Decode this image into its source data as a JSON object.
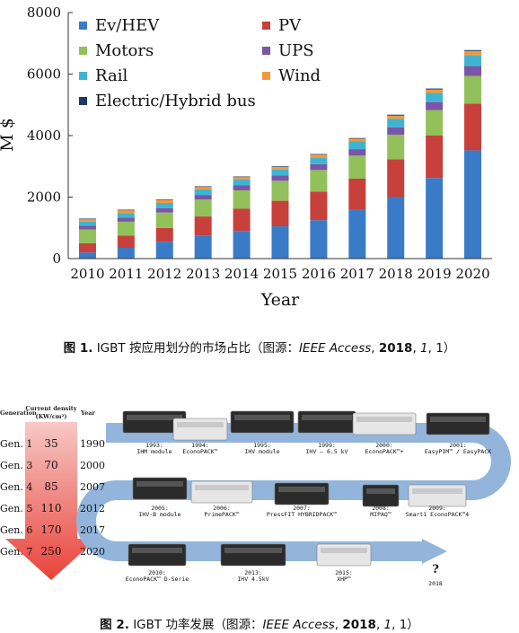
{
  "chart_data": {
    "type": "bar",
    "stacked": true,
    "categories": [
      "2010",
      "2011",
      "2012",
      "2013",
      "2014",
      "2015",
      "2016",
      "2017",
      "2018",
      "2019",
      "2020"
    ],
    "series": [
      {
        "name": "Ev/HEV",
        "color": "#3a7bc8",
        "values": [
          200,
          350,
          550,
          750,
          900,
          1050,
          1250,
          1580,
          2000,
          2620,
          3520
        ]
      },
      {
        "name": "PV",
        "color": "#c8403c",
        "values": [
          300,
          400,
          450,
          620,
          720,
          830,
          930,
          1020,
          1230,
          1380,
          1520
        ]
      },
      {
        "name": "Motors",
        "color": "#92c05a",
        "values": [
          450,
          450,
          500,
          550,
          600,
          650,
          700,
          750,
          800,
          830,
          900
        ]
      },
      {
        "name": "UPS",
        "color": "#7a55a8",
        "values": [
          120,
          130,
          140,
          150,
          160,
          170,
          190,
          210,
          240,
          260,
          320
        ]
      },
      {
        "name": "Rail",
        "color": "#3fb4d2",
        "values": [
          130,
          150,
          170,
          180,
          190,
          200,
          220,
          250,
          280,
          300,
          360
        ]
      },
      {
        "name": "Wind",
        "color": "#f19a3a",
        "values": [
          80,
          90,
          90,
          80,
          80,
          80,
          90,
          90,
          100,
          110,
          130
        ]
      },
      {
        "name": "Electric/Hybrid bus",
        "color": "#1f3864",
        "values": [
          20,
          20,
          20,
          20,
          20,
          20,
          20,
          20,
          30,
          30,
          30
        ]
      }
    ],
    "ylabel": "M $",
    "xlabel": "Year",
    "ylim": [
      0,
      8000
    ],
    "yticks": [
      0,
      2000,
      4000,
      6000,
      8000
    ],
    "grid": false,
    "legend_position": "top-left"
  },
  "caption1": {
    "label": "图 1.",
    "text": " IGBT 按应用划分的市场占比（图源：",
    "journal": "IEEE Access",
    "sep1": ", ",
    "year": "2018",
    "sep2": ", ",
    "volume": "1",
    "end": ", 1）"
  },
  "figure2": {
    "headers": {
      "generation": "Generation",
      "density": "Current density (KW/cm²)",
      "year": "Year"
    },
    "rows": [
      {
        "gen": "Gen. 1",
        "density": "35",
        "year": "1990"
      },
      {
        "gen": "Gen. 3",
        "density": "70",
        "year": "2000"
      },
      {
        "gen": "Gen. 4",
        "density": "85",
        "year": "2007"
      },
      {
        "gen": "Gen. 5",
        "density": "110",
        "year": "2012"
      },
      {
        "gen": "Gen. 6",
        "density": "170",
        "year": "2017"
      },
      {
        "gen": "Gen. 7",
        "density": "250",
        "year": "2020"
      }
    ],
    "modules": [
      {
        "year": "1993:",
        "name": "IHM module"
      },
      {
        "year": "1994:",
        "name": "EconoPACK™"
      },
      {
        "year": "1995:",
        "name": "IHV module"
      },
      {
        "year": "1999:",
        "name": "IHV – 6.5 kV"
      },
      {
        "year": "2000:",
        "name": "EconoPACK™+"
      },
      {
        "year": "2001:",
        "name": "EasyPIM™ / EasyPACK"
      },
      {
        "year": "2005:",
        "name": "IHV-B module"
      },
      {
        "year": "2006:",
        "name": "PrimePACK™"
      },
      {
        "year": "2007:",
        "name": "PressFIT HYBRIDPACK™"
      },
      {
        "year": "2008:",
        "name": "MIPAQ™"
      },
      {
        "year": "2009:",
        "name": "Smart1 EconoPACK™4"
      },
      {
        "year": "2010:",
        "name": "EconoPACK™ D-Serie"
      },
      {
        "year": "2013:",
        "name": "IHV 4.5kV"
      },
      {
        "year": "2015:",
        "name": "XHP™"
      },
      {
        "year": "?",
        "name": "2018"
      }
    ]
  },
  "caption2": {
    "label": "图 2.",
    "text": " IGBT 功率发展（图源：",
    "journal": "IEEE Access",
    "sep1": ", ",
    "year": "2018",
    "sep2": ", ",
    "volume": "1",
    "end": ", 1）"
  }
}
